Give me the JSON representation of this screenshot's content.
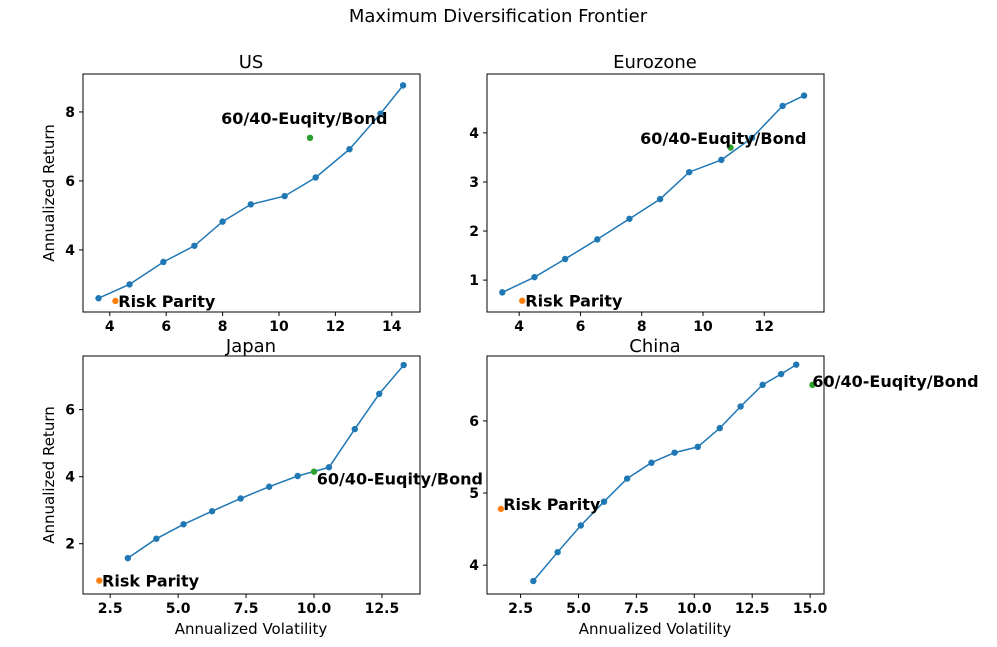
{
  "suptitle": "Maximum Diversification Frontier",
  "colors": {
    "frontier": "#1f77b4",
    "risk_parity": "#ff7f0e",
    "sixty_forty": "#2ca02c"
  },
  "chart_data": [
    {
      "type": "scatter",
      "title": "US",
      "xlabel": "",
      "ylabel": "Annualized Return",
      "xlim": [
        3.05,
        15.0
      ],
      "ylim": [
        2.2,
        9.1
      ],
      "xticks": [
        4,
        6,
        8,
        10,
        12,
        14
      ],
      "xtick_labels": [
        "4",
        "6",
        "8",
        "10",
        "12",
        "14"
      ],
      "yticks": [
        4,
        6,
        8
      ],
      "ytick_labels": [
        "4",
        "6",
        "8"
      ],
      "series": [
        {
          "name": "Frontier",
          "kind": "line-marker",
          "x": [
            3.6,
            4.7,
            5.9,
            7.0,
            8.0,
            9.0,
            10.2,
            11.3,
            12.5,
            13.6,
            14.4
          ],
          "y": [
            2.6,
            3.0,
            3.65,
            4.12,
            4.82,
            5.32,
            5.56,
            6.1,
            6.92,
            7.95,
            8.77
          ]
        },
        {
          "name": "Risk Parity",
          "kind": "point",
          "x": [
            4.2
          ],
          "y": [
            2.52
          ]
        },
        {
          "name": "60/40-Euqity/Bond",
          "kind": "point",
          "x": [
            11.1
          ],
          "y": [
            7.25
          ]
        }
      ],
      "annotations": [
        {
          "text": "Risk Parity",
          "x": 4.3,
          "y": 2.52
        },
        {
          "text": "60/40-Euqity/Bond",
          "x": 7.95,
          "y": 7.82
        }
      ]
    },
    {
      "type": "scatter",
      "title": "Eurozone",
      "xlabel": "",
      "ylabel": "",
      "xlim": [
        2.95,
        13.95
      ],
      "ylim": [
        0.35,
        5.2
      ],
      "xticks": [
        4,
        6,
        8,
        10,
        12
      ],
      "xtick_labels": [
        "4",
        "6",
        "8",
        "10",
        "12"
      ],
      "yticks": [
        1,
        2,
        3,
        4
      ],
      "ytick_labels": [
        "1",
        "2",
        "3",
        "4"
      ],
      "series": [
        {
          "name": "Frontier",
          "kind": "line-marker",
          "x": [
            3.45,
            4.5,
            5.5,
            6.55,
            7.6,
            8.6,
            9.55,
            10.6,
            11.6,
            12.6,
            13.3
          ],
          "y": [
            0.75,
            1.06,
            1.43,
            1.83,
            2.25,
            2.65,
            3.2,
            3.45,
            3.9,
            4.55,
            4.76
          ]
        },
        {
          "name": "Risk Parity",
          "kind": "point",
          "x": [
            4.1
          ],
          "y": [
            0.58
          ]
        },
        {
          "name": "60/40-Euqity/Bond",
          "kind": "point",
          "x": [
            10.9
          ],
          "y": [
            3.7
          ]
        }
      ],
      "annotations": [
        {
          "text": "Risk Parity",
          "x": 4.2,
          "y": 0.58
        },
        {
          "text": "60/40-Euqity/Bond",
          "x": 7.95,
          "y": 3.9
        }
      ]
    },
    {
      "type": "scatter",
      "title": "Japan",
      "xlabel": "Annualized Volatility",
      "ylabel": "Annualized Return",
      "xlim": [
        1.5,
        13.9
      ],
      "ylim": [
        0.5,
        7.6
      ],
      "xticks": [
        2.5,
        5.0,
        7.5,
        10.0,
        12.5
      ],
      "xtick_labels": [
        "2.5",
        "5.0",
        "7.5",
        "10.0",
        "12.5"
      ],
      "yticks": [
        2,
        4,
        6
      ],
      "ytick_labels": [
        "2",
        "4",
        "6"
      ],
      "series": [
        {
          "name": "Frontier",
          "kind": "line-marker",
          "x": [
            3.15,
            4.2,
            5.2,
            6.25,
            7.3,
            8.35,
            9.4,
            10.55,
            11.5,
            12.4,
            13.3
          ],
          "y": [
            1.57,
            2.15,
            2.58,
            2.97,
            3.35,
            3.7,
            4.02,
            4.28,
            5.42,
            6.47,
            7.33
          ]
        },
        {
          "name": "Risk Parity",
          "kind": "point",
          "x": [
            2.1
          ],
          "y": [
            0.9
          ]
        },
        {
          "name": "60/40-Euqity/Bond",
          "kind": "point",
          "x": [
            10.0
          ],
          "y": [
            4.15
          ]
        }
      ],
      "annotations": [
        {
          "text": "Risk Parity",
          "x": 2.2,
          "y": 0.9
        },
        {
          "text": "60/40-Euqity/Bond",
          "x": 10.1,
          "y": 3.95
        }
      ]
    },
    {
      "type": "scatter",
      "title": "China",
      "xlabel": "Annualized Volatility",
      "ylabel": "",
      "xlim": [
        1.05,
        15.6
      ],
      "ylim": [
        3.6,
        6.9
      ],
      "xticks": [
        2.5,
        5.0,
        7.5,
        10.0,
        12.5,
        15.0
      ],
      "xtick_labels": [
        "2.5",
        "5.0",
        "7.5",
        "10.0",
        "12.5",
        "15.0"
      ],
      "yticks": [
        4,
        5,
        6
      ],
      "ytick_labels": [
        "4",
        "5",
        "6"
      ],
      "series": [
        {
          "name": "Frontier",
          "kind": "line-marker",
          "x": [
            3.05,
            4.1,
            5.1,
            6.1,
            7.1,
            8.15,
            9.15,
            10.15,
            11.1,
            12.0,
            12.95,
            13.75,
            14.4
          ],
          "y": [
            3.78,
            4.18,
            4.55,
            4.88,
            5.2,
            5.42,
            5.56,
            5.64,
            5.9,
            6.2,
            6.5,
            6.65,
            6.78
          ]
        },
        {
          "name": "Risk Parity",
          "kind": "point",
          "x": [
            1.65
          ],
          "y": [
            4.78
          ]
        },
        {
          "name": "60/40-Euqity/Bond",
          "kind": "point",
          "x": [
            15.1
          ],
          "y": [
            6.5
          ]
        }
      ],
      "annotations": [
        {
          "text": "Risk Parity",
          "x": 1.75,
          "y": 4.85
        },
        {
          "text": "60/40-Euqity/Bond",
          "x": 15.1,
          "y": 6.55
        }
      ]
    }
  ]
}
